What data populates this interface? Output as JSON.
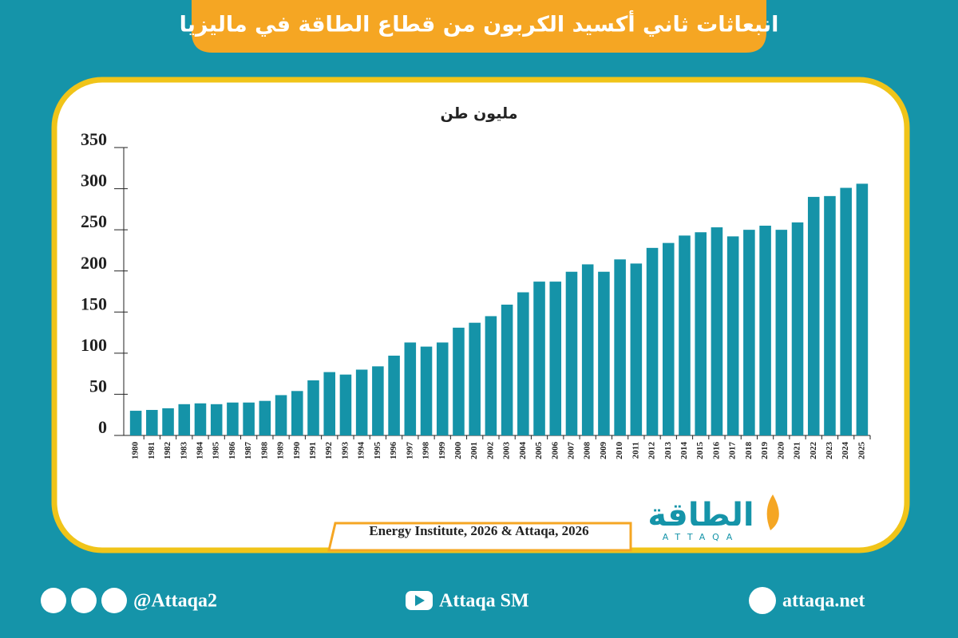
{
  "chart_data": {
    "type": "bar",
    "title": "انبعاثات ثاني أكسيد الكربون من قطاع الطاقة في ماليزيا",
    "subtitle": "مليون طن",
    "categories": [
      "1980",
      "1981",
      "1982",
      "1983",
      "1984",
      "1985",
      "1986",
      "1987",
      "1988",
      "1989",
      "1990",
      "1991",
      "1992",
      "1993",
      "1994",
      "1995",
      "1996",
      "1997",
      "1998",
      "1999",
      "2000",
      "2001",
      "2002",
      "2003",
      "2004",
      "2005",
      "2006",
      "2007",
      "2008",
      "2009",
      "2010",
      "2011",
      "2012",
      "2013",
      "2014",
      "2015",
      "2016",
      "2017",
      "2018",
      "2019",
      "2020",
      "2021",
      "2022",
      "2023",
      "2024",
      "2025"
    ],
    "values": [
      30,
      31,
      33,
      38,
      39,
      38,
      40,
      40,
      42,
      49,
      54,
      67,
      77,
      74,
      80,
      84,
      97,
      113,
      108,
      113,
      131,
      137,
      145,
      159,
      174,
      187,
      187,
      199,
      208,
      199,
      214,
      209,
      228,
      234,
      243,
      247,
      253,
      242,
      250,
      255,
      250,
      259,
      290,
      291,
      301,
      306
    ],
    "color": "#1593a8",
    "ylim": [
      0,
      350
    ],
    "yticks": [
      0,
      50,
      100,
      150,
      200,
      250,
      300,
      350
    ],
    "source": "Energy Institute, 2026 & Attaqa, 2026"
  },
  "logo": {
    "name": "الطاقة",
    "latin": "ATTAQA"
  },
  "footer": {
    "handle": "@Attaqa2",
    "youtube": "Attaqa SM",
    "website": "attaqa.net"
  }
}
